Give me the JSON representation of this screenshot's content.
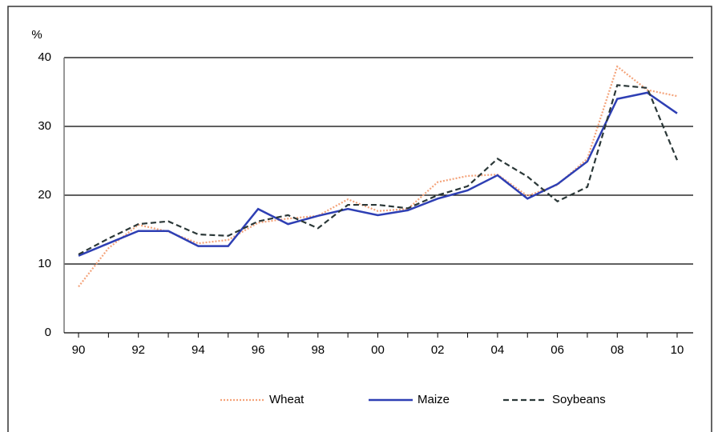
{
  "chart_data": {
    "type": "line",
    "y_label": "%",
    "categories": [
      "90",
      null,
      "92",
      null,
      "94",
      null,
      "96",
      null,
      "98",
      null,
      "00",
      null,
      "02",
      null,
      "04",
      null,
      "06",
      null,
      "08",
      null,
      "10"
    ],
    "series": [
      {
        "name": "Wheat",
        "color": "#f4a37a",
        "style": "dotted",
        "values": [
          6.7,
          12.3,
          15.7,
          14.7,
          13,
          13.5,
          16,
          16.6,
          17,
          19.4,
          17.7,
          18,
          21.9,
          22.8,
          23,
          19.9,
          21.5,
          25.3,
          38.7,
          35.3,
          34.4
        ]
      },
      {
        "name": "Maize",
        "color": "#2e3fb4",
        "style": "solid",
        "values": [
          11.2,
          13,
          14.8,
          14.8,
          12.6,
          12.6,
          18,
          15.8,
          17,
          18,
          17.1,
          17.8,
          19.5,
          20.7,
          22.9,
          19.5,
          21.6,
          24.9,
          34,
          34.9,
          31.9
        ]
      },
      {
        "name": "Soybeans",
        "color": "#2b3838",
        "style": "dashed",
        "values": [
          11.4,
          13.7,
          15.8,
          16.2,
          14.3,
          14.1,
          16.2,
          17.1,
          15.2,
          18.6,
          18.6,
          18.1,
          20,
          21.3,
          25.3,
          22.7,
          19.1,
          21.2,
          36,
          35.6,
          25.1
        ]
      }
    ],
    "ylim": [
      0,
      40
    ],
    "yticks": [
      0,
      10,
      20,
      30,
      40
    ],
    "grid": true,
    "legend": "bottom"
  }
}
